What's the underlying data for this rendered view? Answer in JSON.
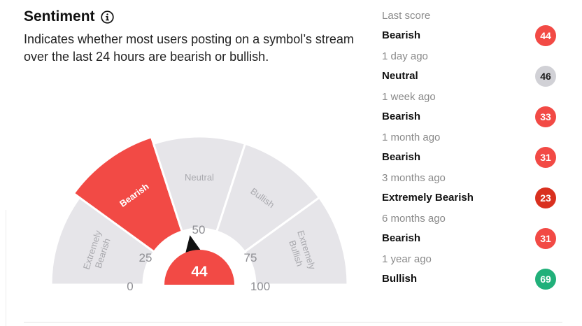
{
  "header": {
    "title": "Sentiment",
    "info_icon": "info-icon",
    "description": "Indicates whether most users posting on a symbol’s stream over the last 24 hours are bearish or bullish."
  },
  "gauge": {
    "value": 44,
    "segments": [
      {
        "label": "Extremely Bearish",
        "line1": "Extremely",
        "line2": "Bearish",
        "active": false
      },
      {
        "label": "Bearish",
        "active": true
      },
      {
        "label": "Neutral",
        "active": false
      },
      {
        "label": "Bullish",
        "active": false
      },
      {
        "label": "Extremely Bullish",
        "line1": "Extremely",
        "line2": "Bullish",
        "active": false
      }
    ],
    "ticks": [
      "0",
      "25",
      "50",
      "75",
      "100"
    ],
    "colors": {
      "active": "#f24a45",
      "inactive": "#e6e5e9",
      "inactive_text": "#a9a9ae",
      "pointer": "#111111",
      "value_bg": "#f24a45"
    }
  },
  "history": [
    {
      "label": "Last score",
      "sentiment": "Bearish",
      "score": "44",
      "color": "#f24a45"
    },
    {
      "label": "1 day ago",
      "sentiment": "Neutral",
      "score": "46",
      "color": "#d1d1d6"
    },
    {
      "label": "1 week ago",
      "sentiment": "Bearish",
      "score": "33",
      "color": "#f24a45"
    },
    {
      "label": "1 month ago",
      "sentiment": "Bearish",
      "score": "31",
      "color": "#f24a45"
    },
    {
      "label": "3 months ago",
      "sentiment": "Extremely Bearish",
      "score": "23",
      "color": "#d9301f"
    },
    {
      "label": "6 months ago",
      "sentiment": "Bearish",
      "score": "31",
      "color": "#f24a45"
    },
    {
      "label": "1 year ago",
      "sentiment": "Bullish",
      "score": "69",
      "color": "#21b07a"
    }
  ]
}
